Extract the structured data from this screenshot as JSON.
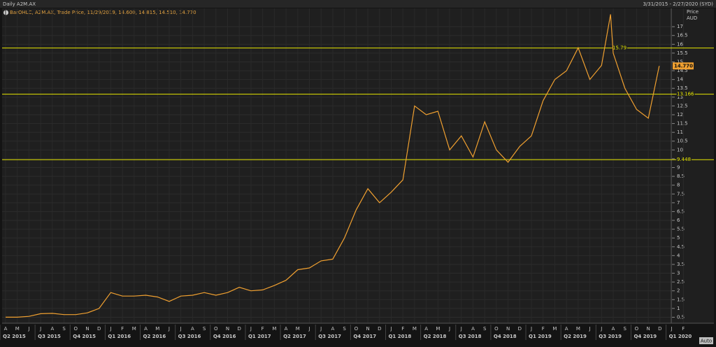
{
  "chart_data": {
    "type": "line",
    "title": "Daily A2M.AX",
    "date_range": "3/31/2015 - 2/27/2020 (SYD)",
    "legend_text": "BarOHLC, A2M.AX, Trade Price, 11/29/2019, 14.600, 14.815, 14.510, 14.770",
    "y_axis_title": [
      "Price",
      "AUD"
    ],
    "button": "Auto",
    "grid": true,
    "series": [
      {
        "color": "#f0a030",
        "x": [
          "2015-04-01",
          "2015-05-01",
          "2015-06-01",
          "2015-07-01",
          "2015-08-01",
          "2015-09-01",
          "2015-10-01",
          "2015-11-01",
          "2015-12-01",
          "2016-01-01",
          "2016-02-01",
          "2016-03-01",
          "2016-04-01",
          "2016-05-01",
          "2016-06-01",
          "2016-07-01",
          "2016-08-01",
          "2016-09-01",
          "2016-10-01",
          "2016-11-01",
          "2016-12-01",
          "2017-01-01",
          "2017-02-01",
          "2017-03-01",
          "2017-04-01",
          "2017-05-01",
          "2017-06-01",
          "2017-07-01",
          "2017-08-01",
          "2017-09-01",
          "2017-10-01",
          "2017-11-01",
          "2017-12-01",
          "2018-01-01",
          "2018-02-01",
          "2018-03-01",
          "2018-04-01",
          "2018-05-01",
          "2018-06-01",
          "2018-07-01",
          "2018-08-01",
          "2018-09-01",
          "2018-10-01",
          "2018-11-01",
          "2018-12-01",
          "2019-01-01",
          "2019-02-01",
          "2019-03-01",
          "2019-04-01",
          "2019-05-01",
          "2019-06-01",
          "2019-07-01",
          "2019-07-25",
          "2019-08-01",
          "2019-09-01",
          "2019-10-01",
          "2019-11-01",
          "2019-11-29"
        ],
        "values": [
          0.5,
          0.5,
          0.55,
          0.7,
          0.72,
          0.65,
          0.65,
          0.75,
          1.0,
          1.9,
          1.7,
          1.7,
          1.75,
          1.65,
          1.4,
          1.7,
          1.75,
          1.9,
          1.75,
          1.9,
          2.2,
          2.0,
          2.05,
          2.3,
          2.6,
          3.2,
          3.3,
          3.7,
          3.8,
          5.0,
          6.6,
          7.8,
          7.0,
          7.6,
          8.3,
          12.5,
          12.0,
          12.2,
          10.0,
          10.8,
          9.6,
          11.6,
          10.0,
          9.3,
          10.2,
          10.8,
          12.8,
          14.0,
          14.5,
          15.8,
          14.0,
          14.8,
          17.7,
          15.5,
          13.5,
          12.3,
          11.8,
          14.77
        ]
      }
    ],
    "last_price": {
      "value": 14.77,
      "label": "14.770"
    },
    "reference_lines": [
      15.79,
      13.166,
      9.448
    ],
    "reference_color": "#e6e600",
    "ylim": [
      0.2,
      17.8
    ],
    "yticks": [
      0.5,
      1,
      1.5,
      2,
      2.5,
      3,
      3.5,
      4,
      4.5,
      5,
      5.5,
      6,
      6.5,
      7,
      7.5,
      8,
      8.5,
      9,
      9.5,
      10,
      10.5,
      11,
      11.5,
      12,
      12.5,
      13,
      13.5,
      14,
      14.5,
      15,
      15.5,
      16,
      16.5,
      17
    ],
    "xlim": [
      "2015-04-01",
      "2020-03-01"
    ],
    "xticks": [
      {
        "value": "2015-04-01",
        "label": "A"
      },
      {
        "value": "2015-05-01",
        "label": "M"
      },
      {
        "value": "2015-06-01",
        "label": "J"
      },
      {
        "value": "2015-07-01",
        "label": "J"
      },
      {
        "value": "2015-08-01",
        "label": "A"
      },
      {
        "value": "2015-09-01",
        "label": "S"
      },
      {
        "value": "2015-10-01",
        "label": "O"
      },
      {
        "value": "2015-11-01",
        "label": "N"
      },
      {
        "value": "2015-12-01",
        "label": "D"
      },
      {
        "value": "2016-01-01",
        "label": "J"
      },
      {
        "value": "2016-02-01",
        "label": "F"
      },
      {
        "value": "2016-03-01",
        "label": "M"
      },
      {
        "value": "2016-04-01",
        "label": "A"
      },
      {
        "value": "2016-05-01",
        "label": "M"
      },
      {
        "value": "2016-06-01",
        "label": "J"
      },
      {
        "value": "2016-07-01",
        "label": "J"
      },
      {
        "value": "2016-08-01",
        "label": "A"
      },
      {
        "value": "2016-09-01",
        "label": "S"
      },
      {
        "value": "2016-10-01",
        "label": "O"
      },
      {
        "value": "2016-11-01",
        "label": "N"
      },
      {
        "value": "2016-12-01",
        "label": "D"
      },
      {
        "value": "2017-01-01",
        "label": "J"
      },
      {
        "value": "2017-02-01",
        "label": "F"
      },
      {
        "value": "2017-03-01",
        "label": "M"
      },
      {
        "value": "2017-04-01",
        "label": "A"
      },
      {
        "value": "2017-05-01",
        "label": "M"
      },
      {
        "value": "2017-06-01",
        "label": "J"
      },
      {
        "value": "2017-07-01",
        "label": "J"
      },
      {
        "value": "2017-08-01",
        "label": "A"
      },
      {
        "value": "2017-09-01",
        "label": "S"
      },
      {
        "value": "2017-10-01",
        "label": "O"
      },
      {
        "value": "2017-11-01",
        "label": "N"
      },
      {
        "value": "2017-12-01",
        "label": "D"
      },
      {
        "value": "2018-01-01",
        "label": "J"
      },
      {
        "value": "2018-02-01",
        "label": "F"
      },
      {
        "value": "2018-03-01",
        "label": "M"
      },
      {
        "value": "2018-04-01",
        "label": "A"
      },
      {
        "value": "2018-05-01",
        "label": "M"
      },
      {
        "value": "2018-06-01",
        "label": "J"
      },
      {
        "value": "2018-07-01",
        "label": "J"
      },
      {
        "value": "2018-08-01",
        "label": "A"
      },
      {
        "value": "2018-09-01",
        "label": "S"
      },
      {
        "value": "2018-10-01",
        "label": "O"
      },
      {
        "value": "2018-11-01",
        "label": "N"
      },
      {
        "value": "2018-12-01",
        "label": "D"
      },
      {
        "value": "2019-01-01",
        "label": "J"
      },
      {
        "value": "2019-02-01",
        "label": "F"
      },
      {
        "value": "2019-03-01",
        "label": "M"
      },
      {
        "value": "2019-04-01",
        "label": "A"
      },
      {
        "value": "2019-05-01",
        "label": "M"
      },
      {
        "value": "2019-06-01",
        "label": "J"
      },
      {
        "value": "2019-07-01",
        "label": "J"
      },
      {
        "value": "2019-08-01",
        "label": "A"
      },
      {
        "value": "2019-09-01",
        "label": "S"
      },
      {
        "value": "2019-10-01",
        "label": "O"
      },
      {
        "value": "2019-11-01",
        "label": "N"
      },
      {
        "value": "2019-12-01",
        "label": "D"
      },
      {
        "value": "2020-01-01",
        "label": "J"
      },
      {
        "value": "2020-02-01",
        "label": "F"
      }
    ],
    "quarter_ticks": [
      {
        "value": "2015-04-01",
        "label": "Q2 2015"
      },
      {
        "value": "2015-07-01",
        "label": "Q3 2015"
      },
      {
        "value": "2015-10-01",
        "label": "Q4 2015"
      },
      {
        "value": "2016-01-01",
        "label": "Q1 2016"
      },
      {
        "value": "2016-04-01",
        "label": "Q2 2016"
      },
      {
        "value": "2016-07-01",
        "label": "Q3 2016"
      },
      {
        "value": "2016-10-01",
        "label": "Q4 2016"
      },
      {
        "value": "2017-01-01",
        "label": "Q1 2017"
      },
      {
        "value": "2017-04-01",
        "label": "Q2 2017"
      },
      {
        "value": "2017-07-01",
        "label": "Q3 2017"
      },
      {
        "value": "2017-10-01",
        "label": "Q4 2017"
      },
      {
        "value": "2018-01-01",
        "label": "Q1 2018"
      },
      {
        "value": "2018-04-01",
        "label": "Q2 2018"
      },
      {
        "value": "2018-07-01",
        "label": "Q3 2018"
      },
      {
        "value": "2018-10-01",
        "label": "Q4 2018"
      },
      {
        "value": "2019-01-01",
        "label": "Q1 2019"
      },
      {
        "value": "2019-04-01",
        "label": "Q2 2019"
      },
      {
        "value": "2019-07-01",
        "label": "Q3 2019"
      },
      {
        "value": "2019-10-01",
        "label": "Q4 2019"
      },
      {
        "value": "2020-01-01",
        "label": "Q1 2020"
      }
    ]
  }
}
